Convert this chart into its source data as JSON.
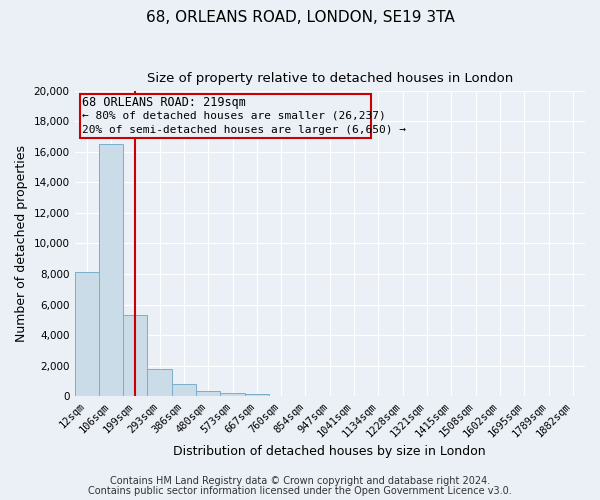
{
  "title": "68, ORLEANS ROAD, LONDON, SE19 3TA",
  "subtitle": "Size of property relative to detached houses in London",
  "xlabel": "Distribution of detached houses by size in London",
  "ylabel": "Number of detached properties",
  "bar_labels": [
    "12sqm",
    "106sqm",
    "199sqm",
    "293sqm",
    "386sqm",
    "480sqm",
    "573sqm",
    "667sqm",
    "760sqm",
    "854sqm",
    "947sqm",
    "1041sqm",
    "1134sqm",
    "1228sqm",
    "1321sqm",
    "1415sqm",
    "1508sqm",
    "1602sqm",
    "1695sqm",
    "1789sqm",
    "1882sqm"
  ],
  "bar_heights": [
    8100,
    16500,
    5300,
    1800,
    800,
    350,
    200,
    150,
    0,
    0,
    0,
    0,
    0,
    0,
    0,
    0,
    0,
    0,
    0,
    0,
    0
  ],
  "bar_color": "#c9dce8",
  "bar_edge_color": "#7aaec8",
  "vline_x": 2,
  "vline_color": "#cc0000",
  "ylim": [
    0,
    20000
  ],
  "yticks": [
    0,
    2000,
    4000,
    6000,
    8000,
    10000,
    12000,
    14000,
    16000,
    18000,
    20000
  ],
  "annotation_title": "68 ORLEANS ROAD: 219sqm",
  "annotation_line1": "← 80% of detached houses are smaller (26,237)",
  "annotation_line2": "20% of semi-detached houses are larger (6,650) →",
  "annotation_box_color": "#cc0000",
  "footer_line1": "Contains HM Land Registry data © Crown copyright and database right 2024.",
  "footer_line2": "Contains public sector information licensed under the Open Government Licence v3.0.",
  "background_color": "#eaf0f6",
  "grid_color": "#ffffff",
  "title_fontsize": 11,
  "subtitle_fontsize": 9.5,
  "axis_label_fontsize": 9,
  "tick_fontsize": 7.5,
  "footer_fontsize": 7
}
